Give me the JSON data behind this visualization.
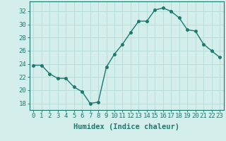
{
  "x": [
    0,
    1,
    2,
    3,
    4,
    5,
    6,
    7,
    8,
    9,
    10,
    11,
    12,
    13,
    14,
    15,
    16,
    17,
    18,
    19,
    20,
    21,
    22,
    23
  ],
  "y": [
    23.8,
    23.8,
    22.5,
    21.8,
    21.8,
    20.5,
    19.8,
    18.0,
    18.2,
    23.5,
    25.5,
    27.0,
    28.8,
    30.5,
    30.5,
    32.2,
    32.5,
    32.0,
    31.0,
    29.2,
    29.0,
    27.0,
    26.0,
    25.0
  ],
  "line_color": "#1a7a6e",
  "marker": "o",
  "marker_size": 2.5,
  "line_width": 1.0,
  "bg_color": "#d4eeeb",
  "grid_color": "#b8ddd9",
  "tick_color": "#1a7a6e",
  "xlabel": "Humidex (Indice chaleur)",
  "xlabel_fontsize": 7.5,
  "ylim": [
    17,
    33.5
  ],
  "yticks": [
    18,
    20,
    22,
    24,
    26,
    28,
    30,
    32
  ],
  "xticks": [
    0,
    1,
    2,
    3,
    4,
    5,
    6,
    7,
    8,
    9,
    10,
    11,
    12,
    13,
    14,
    15,
    16,
    17,
    18,
    19,
    20,
    21,
    22,
    23
  ],
  "tick_fontsize": 6.5,
  "spine_color": "#1a7a6e"
}
